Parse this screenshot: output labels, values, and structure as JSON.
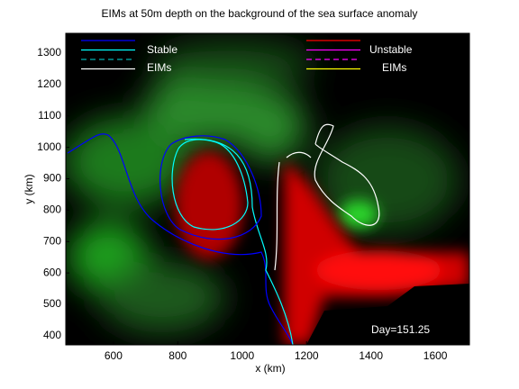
{
  "chart_data": {
    "type": "map",
    "title": "EIMs at 50m depth on the background of the sea surface anomaly",
    "x_label": "x (km)",
    "y_label": "y (km)",
    "xlim": [
      452,
      1706
    ],
    "ylim": [
      371,
      1363
    ],
    "xticks": [
      600,
      800,
      1000,
      1200,
      1400,
      1600
    ],
    "yticks": [
      400,
      500,
      600,
      700,
      800,
      900,
      1000,
      1100,
      1200,
      1300
    ],
    "legend": [
      {
        "labels": [
          "Stable",
          "EIMs"
        ],
        "colors": [
          "#0000ff",
          "#00ffff",
          "#00b0b0",
          "#ffffff"
        ]
      },
      {
        "labels": [
          "Unstable",
          "EIMs"
        ],
        "colors": [
          "#ff0000",
          "#ff00ff",
          "#ff00ff",
          "#ffff00"
        ]
      }
    ],
    "annotation": "Day=151.25"
  }
}
